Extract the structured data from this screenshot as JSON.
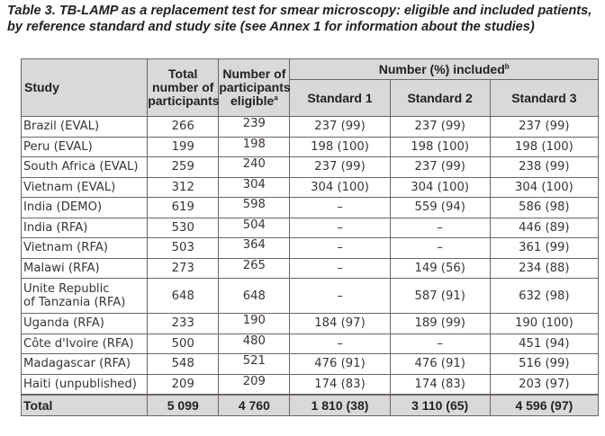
{
  "caption": "Table 3. TB-LAMP as a replacement test for smear microscopy: eligible and included patients, by reference standard and study site (see Annex 1 for information about the studies)",
  "header": {
    "study": "Study",
    "total_participants": "Total number of participants",
    "eligible_main": "Number of participants eligible",
    "eligible_mark": "a",
    "included_main": "Number (%) included",
    "included_mark": "b",
    "standard_1": "Standard 1",
    "standard_2": "Standard 2",
    "standard_3": "Standard 3"
  },
  "rows": [
    {
      "study": "Brazil (EVAL)",
      "total": "266",
      "eligible": "239",
      "s1": "237 (99)",
      "s2": "237 (99)",
      "s3": "237 (99)"
    },
    {
      "study": "Peru (EVAL)",
      "total": "199",
      "eligible": "198",
      "s1": "198 (100)",
      "s2": "198 (100)",
      "s3": "198 (100)"
    },
    {
      "study": "South Africa (EVAL)",
      "total": "259",
      "eligible": "240",
      "s1": "237 (99)",
      "s2": "237 (99)",
      "s3": "238 (99)"
    },
    {
      "study": "Vietnam (EVAL)",
      "total": "312",
      "eligible": "304",
      "s1": "304 (100)",
      "s2": "304 (100)",
      "s3": "304 (100)"
    },
    {
      "study": "India (DEMO)",
      "total": "619",
      "eligible": "598",
      "s1": "–",
      "s2": "559 (94)",
      "s3": "586 (98)"
    },
    {
      "study": "India (RFA)",
      "total": "530",
      "eligible": "504",
      "s1": "–",
      "s2": "–",
      "s3": "446 (89)"
    },
    {
      "study": "Vietnam (RFA)",
      "total": "503",
      "eligible": "364",
      "s1": "–",
      "s2": "–",
      "s3": "361 (99)"
    },
    {
      "study": "Malawi (RFA)",
      "total": "273",
      "eligible": "265",
      "s1": "–",
      "s2": "149 (56)",
      "s3": "234 (88)"
    },
    {
      "study_line1": "Unite Republic",
      "study_line2": "of Tanzania (RFA)",
      "total": "648",
      "eligible": "648",
      "s1": "–",
      "s2": "587 (91)",
      "s3": "632 (98)"
    },
    {
      "study": "Uganda (RFA)",
      "total": "233",
      "eligible": "190",
      "s1": "184 (97)",
      "s2": "189 (99)",
      "s3": "190 (100)"
    },
    {
      "study": "Côte d'Ivoire (RFA)",
      "total": "500",
      "eligible": "480",
      "s1": "–",
      "s2": "–",
      "s3": "451 (94)"
    },
    {
      "study": "Madagascar (RFA)",
      "total": "548",
      "eligible": "521",
      "s1": "476 (91)",
      "s2": "476 (91)",
      "s3": "516 (99)"
    },
    {
      "study": "Haiti (unpublished)",
      "total": "209",
      "eligible": "209",
      "s1": "174 (83)",
      "s2": "174 (83)",
      "s3": "203 (97)"
    }
  ],
  "total_row": {
    "label": "Total",
    "total": "5 099",
    "eligible": "4 760",
    "s1": "1 810 (38)",
    "s2": "3 110 (65)",
    "s3": "4 596 (97)"
  }
}
